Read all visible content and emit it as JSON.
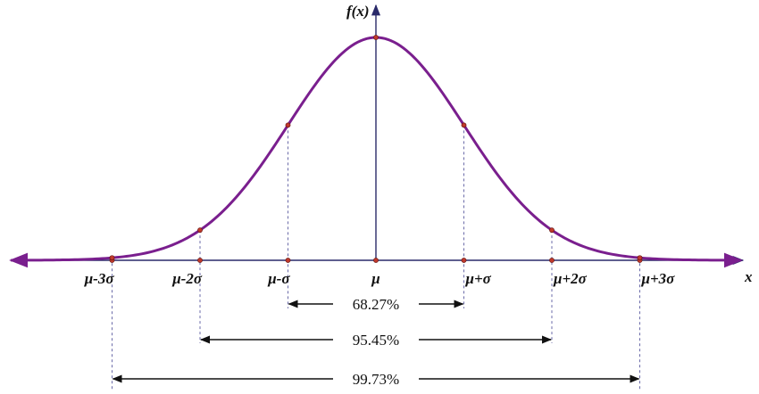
{
  "chart_data": {
    "type": "line",
    "title": "",
    "ylabel": "f(x)",
    "xlabel": "x",
    "x_ticks": [
      {
        "sigma": -3,
        "label": "μ-3σ"
      },
      {
        "sigma": -2,
        "label": "μ-2σ"
      },
      {
        "sigma": -1,
        "label": "μ-σ"
      },
      {
        "sigma": 0,
        "label": "μ"
      },
      {
        "sigma": 1,
        "label": "μ+σ"
      },
      {
        "sigma": 2,
        "label": "μ+2σ"
      },
      {
        "sigma": 3,
        "label": "μ+3σ"
      }
    ],
    "xlim": [
      -4.15,
      4.15
    ],
    "intervals": [
      {
        "sigma": 1,
        "label": "68.27%"
      },
      {
        "sigma": 2,
        "label": "95.45%"
      },
      {
        "sigma": 3,
        "label": "99.73%"
      }
    ],
    "curve_color": "#7a1f8e",
    "axis_color": "#2a2a6a",
    "point_color": "#c0392b",
    "guide_color": "#6a6aa8"
  }
}
